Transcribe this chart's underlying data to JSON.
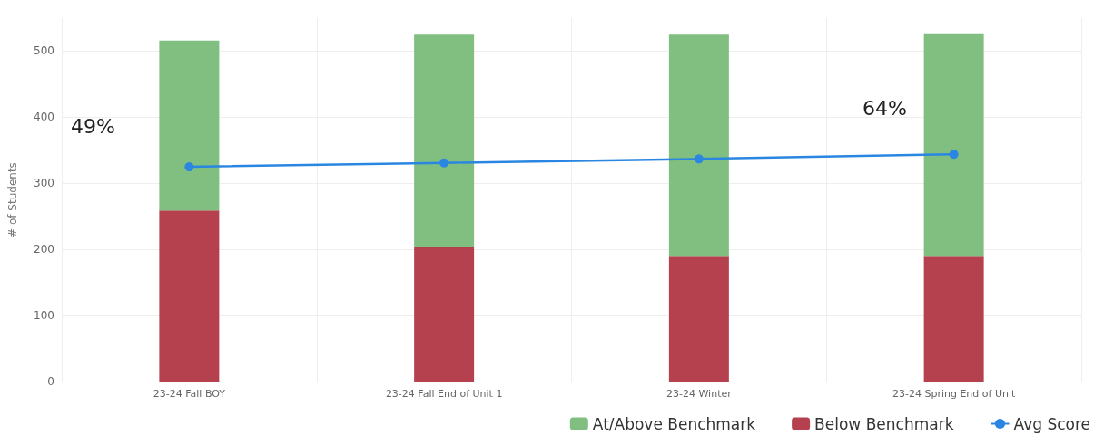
{
  "chart_data": {
    "type": "bar",
    "stacked": true,
    "ylabel": "# of Students",
    "categories": [
      "23-24 Fall BOY",
      "23-24 Fall End of Unit 1",
      "23-24 Winter",
      "23-24 Spring End of Unit"
    ],
    "series": [
      {
        "name": "Below Benchmark",
        "color": "#b5414f",
        "values": [
          259,
          204,
          189,
          189
        ]
      },
      {
        "name": "At/Above Benchmark",
        "color": "#80bf80",
        "values": [
          257,
          321,
          336,
          338
        ]
      },
      {
        "name": "Avg Score",
        "type": "line",
        "color": "#2a86e0",
        "marker": "circle",
        "values": [
          325,
          331,
          337,
          344
        ]
      }
    ],
    "ylim": [
      0,
      550
    ],
    "yticks": [
      0,
      100,
      200,
      300,
      400,
      500
    ],
    "grid": true,
    "legend": "bottom right",
    "annotations": [
      "49%",
      "64%"
    ]
  }
}
